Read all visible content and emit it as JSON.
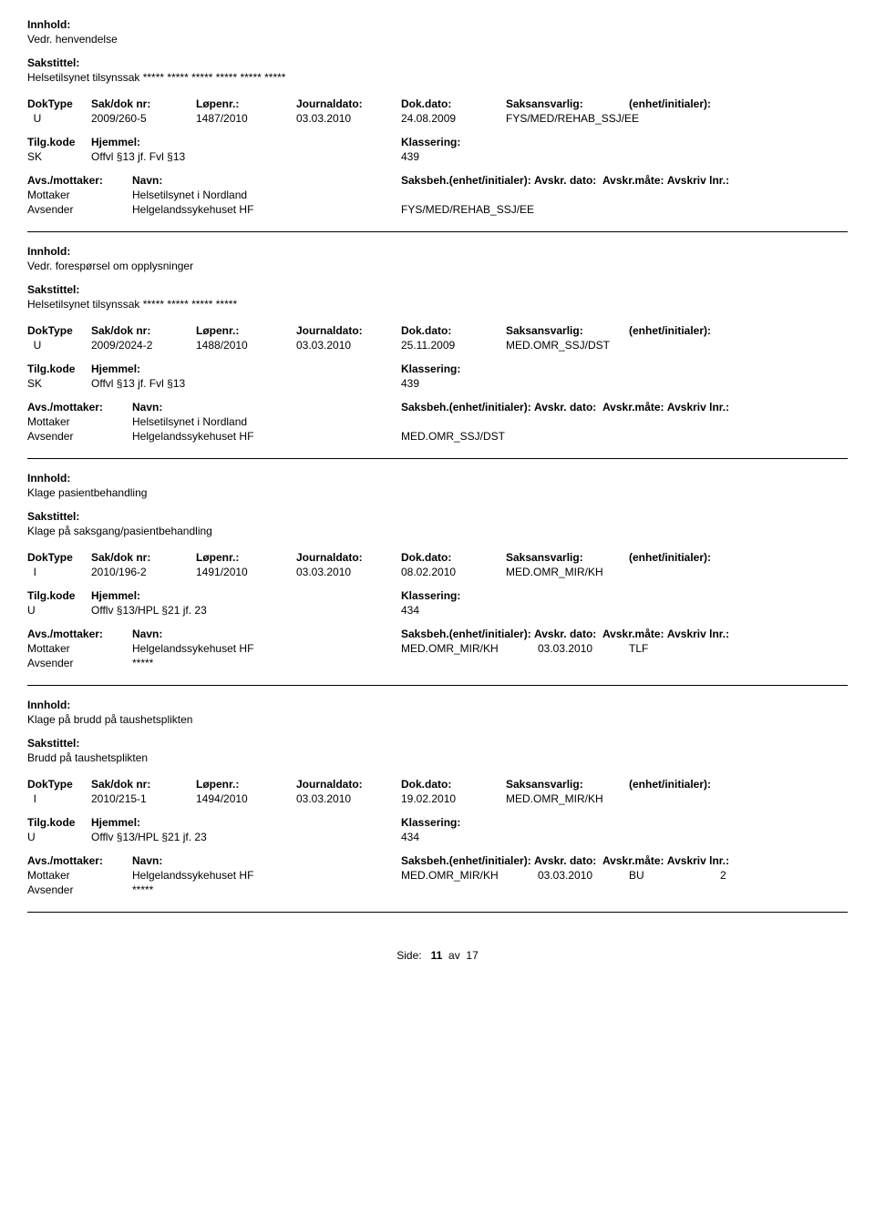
{
  "labels": {
    "innhold": "Innhold:",
    "sakstittel": "Sakstittel:",
    "doktype": "DokType",
    "sakdoknr": "Sak/dok nr:",
    "lopenr": "Løpenr.:",
    "journaldato": "Journaldato:",
    "dokdato": "Dok.dato:",
    "saksansvarlig": "Saksansvarlig:",
    "enhet_initialer": "(enhet/initialer):",
    "tilgkode": "Tilg.kode",
    "hjemmel": "Hjemmel:",
    "klassering": "Klassering:",
    "avsmottaker": "Avs./mottaker:",
    "navn": "Navn:",
    "saksbeh": "Saksbeh.",
    "avskr_dato": "Avskr. dato:",
    "avskr_mate": "Avskr.måte:",
    "avskriv_lnr": "Avskriv lnr.:",
    "mottaker": "Mottaker",
    "avsender": "Avsender",
    "side": "Side:",
    "av": "av"
  },
  "footer": {
    "page": "11",
    "total": "17"
  },
  "records": [
    {
      "innhold": "Vedr. henvendelse",
      "sakstittel": "Helsetilsynet tilsynssak ***** ***** ***** ***** ***** *****",
      "doktype": "U",
      "sakdok": "2009/260-5",
      "lopenr": "1487/2010",
      "journaldato": "03.03.2010",
      "dokdato": "24.08.2009",
      "saksansvarlig": "FYS/MED/REHAB_SSJ/EE",
      "tilgkode": "SK",
      "hjemmel": "Offvl §13 jf. Fvl §13",
      "klassering": "439",
      "parties": [
        {
          "role": "Mottaker",
          "navn": "Helsetilsynet i Nordland",
          "saksbeh": "",
          "avskrdato": "",
          "avskrmate": "",
          "avskrivlnr": ""
        },
        {
          "role": "Avsender",
          "navn": "Helgelandssykehuset HF",
          "saksbeh": "FYS/MED/REHAB_SSJ/EE",
          "avskrdato": "",
          "avskrmate": "",
          "avskrivlnr": ""
        }
      ]
    },
    {
      "innhold": "Vedr. forespørsel om opplysninger",
      "sakstittel": "Helsetilsynet tilsynssak ***** ***** ***** *****",
      "doktype": "U",
      "sakdok": "2009/2024-2",
      "lopenr": "1488/2010",
      "journaldato": "03.03.2010",
      "dokdato": "25.11.2009",
      "saksansvarlig": "MED.OMR_SSJ/DST",
      "tilgkode": "SK",
      "hjemmel": "Offvl §13 jf. Fvl §13",
      "klassering": "439",
      "parties": [
        {
          "role": "Mottaker",
          "navn": "Helsetilsynet i Nordland",
          "saksbeh": "",
          "avskrdato": "",
          "avskrmate": "",
          "avskrivlnr": ""
        },
        {
          "role": "Avsender",
          "navn": "Helgelandssykehuset HF",
          "saksbeh": "MED.OMR_SSJ/DST",
          "avskrdato": "",
          "avskrmate": "",
          "avskrivlnr": ""
        }
      ]
    },
    {
      "innhold": "Klage pasientbehandling",
      "sakstittel": "Klage på saksgang/pasientbehandling",
      "doktype": "I",
      "sakdok": "2010/196-2",
      "lopenr": "1491/2010",
      "journaldato": "03.03.2010",
      "dokdato": "08.02.2010",
      "saksansvarlig": "MED.OMR_MIR/KH",
      "tilgkode": "U",
      "hjemmel": "Offlv §13/HPL §21 jf. 23",
      "klassering": "434",
      "parties": [
        {
          "role": "Mottaker",
          "navn": "Helgelandssykehuset HF",
          "saksbeh": "MED.OMR_MIR/KH",
          "avskrdato": "03.03.2010",
          "avskrmate": "TLF",
          "avskrivlnr": ""
        },
        {
          "role": "Avsender",
          "navn": "*****",
          "saksbeh": "",
          "avskrdato": "",
          "avskrmate": "",
          "avskrivlnr": ""
        }
      ]
    },
    {
      "innhold": "Klage på brudd på taushetsplikten",
      "sakstittel": "Brudd på taushetsplikten",
      "doktype": "I",
      "sakdok": "2010/215-1",
      "lopenr": "1494/2010",
      "journaldato": "03.03.2010",
      "dokdato": "19.02.2010",
      "saksansvarlig": "MED.OMR_MIR/KH",
      "tilgkode": "U",
      "hjemmel": "Offlv §13/HPL §21 jf. 23",
      "klassering": "434",
      "parties": [
        {
          "role": "Mottaker",
          "navn": "Helgelandssykehuset HF",
          "saksbeh": "MED.OMR_MIR/KH",
          "avskrdato": "03.03.2010",
          "avskrmate": "BU",
          "avskrivlnr": "2"
        },
        {
          "role": "Avsender",
          "navn": "*****",
          "saksbeh": "",
          "avskrdato": "",
          "avskrmate": "",
          "avskrivlnr": ""
        }
      ]
    }
  ]
}
